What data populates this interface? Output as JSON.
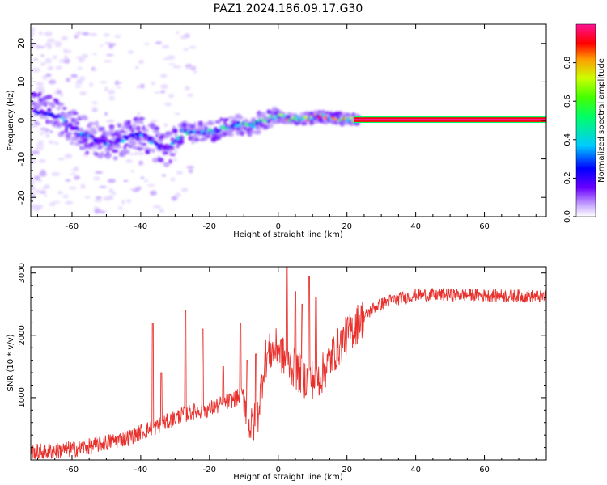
{
  "title": "PAZ1.2024.186.09.17.G30",
  "chart_data": [
    {
      "type": "heatmap",
      "xlabel": "Height of straight line (km)",
      "ylabel": "Frequency (Hz)",
      "xlim": [
        -72,
        78
      ],
      "ylim": [
        -25,
        25
      ],
      "xticks": [
        -60,
        -40,
        -20,
        0,
        20,
        40,
        60
      ],
      "yticks": [
        -20,
        -10,
        0,
        10,
        20
      ],
      "colorbar": {
        "label": "Normalized spectral amplitude",
        "range": [
          0,
          1
        ],
        "ticks": [
          0.0,
          0.2,
          0.4,
          0.6,
          0.8
        ],
        "colormap": [
          "#ffffff",
          "#b48cff",
          "#6a00ff",
          "#0000ff",
          "#00ccff",
          "#00ff66",
          "#44ff00",
          "#ccff00",
          "#ff9900",
          "#ff0000",
          "#ff1493"
        ]
      },
      "ridge": {
        "x": [
          -70,
          -64,
          -58,
          -52,
          -48,
          -44,
          -40,
          -36,
          -32,
          -28,
          -24,
          -20,
          -16,
          -12,
          -8,
          -4,
          0,
          4,
          8,
          12,
          16,
          20,
          24,
          78
        ],
        "y": [
          2.5,
          1.0,
          -3.0,
          -5.5,
          -6.0,
          -4.5,
          -3.5,
          -6.0,
          -7.5,
          -3.0,
          -3.0,
          -3.0,
          -2.0,
          -1.0,
          -1.5,
          0.0,
          1.0,
          0.5,
          0.5,
          1.0,
          0.8,
          0.3,
          0.2,
          0.2
        ]
      },
      "carrier": {
        "x_start": 22,
        "x_end": 78,
        "y": 0.2
      }
    },
    {
      "type": "line",
      "xlabel": "Height of straight line (km)",
      "ylabel": "SNR (10 * v/v)",
      "xlim": [
        -72,
        78
      ],
      "ylim": [
        0,
        3100
      ],
      "xticks": [
        -60,
        -40,
        -20,
        0,
        20,
        40,
        60
      ],
      "yticks": [
        1000,
        2000,
        3000
      ],
      "color": "#e8302c",
      "trend": {
        "x": [
          -72,
          -64,
          -56,
          -50,
          -44,
          -40,
          -36,
          -32,
          -28,
          -24,
          -20,
          -16,
          -12,
          -10,
          -8,
          -6,
          -4,
          -2,
          0,
          2,
          4,
          8,
          12,
          16,
          20,
          24,
          28,
          32,
          40,
          50,
          60,
          70,
          78
        ],
        "y": [
          120,
          150,
          200,
          280,
          350,
          450,
          520,
          620,
          720,
          780,
          820,
          900,
          1000,
          1050,
          500,
          700,
          1600,
          1750,
          1800,
          1600,
          1500,
          1300,
          1300,
          1700,
          2000,
          2250,
          2450,
          2550,
          2650,
          2650,
          2640,
          2630,
          2620
        ]
      },
      "spikes": [
        {
          "x": -36.5,
          "y": 2200
        },
        {
          "x": -34,
          "y": 1400
        },
        {
          "x": -27,
          "y": 2400
        },
        {
          "x": -22,
          "y": 2100
        },
        {
          "x": -16,
          "y": 1500
        },
        {
          "x": -11,
          "y": 2200
        },
        {
          "x": -9,
          "y": 1600
        },
        {
          "x": -6.5,
          "y": 1700
        },
        {
          "x": 2.5,
          "y": 3100
        },
        {
          "x": 5,
          "y": 2700
        },
        {
          "x": 7,
          "y": 2500
        },
        {
          "x": 9,
          "y": 2950
        },
        {
          "x": 11,
          "y": 2600
        }
      ],
      "noise_amplitude": 150
    }
  ]
}
